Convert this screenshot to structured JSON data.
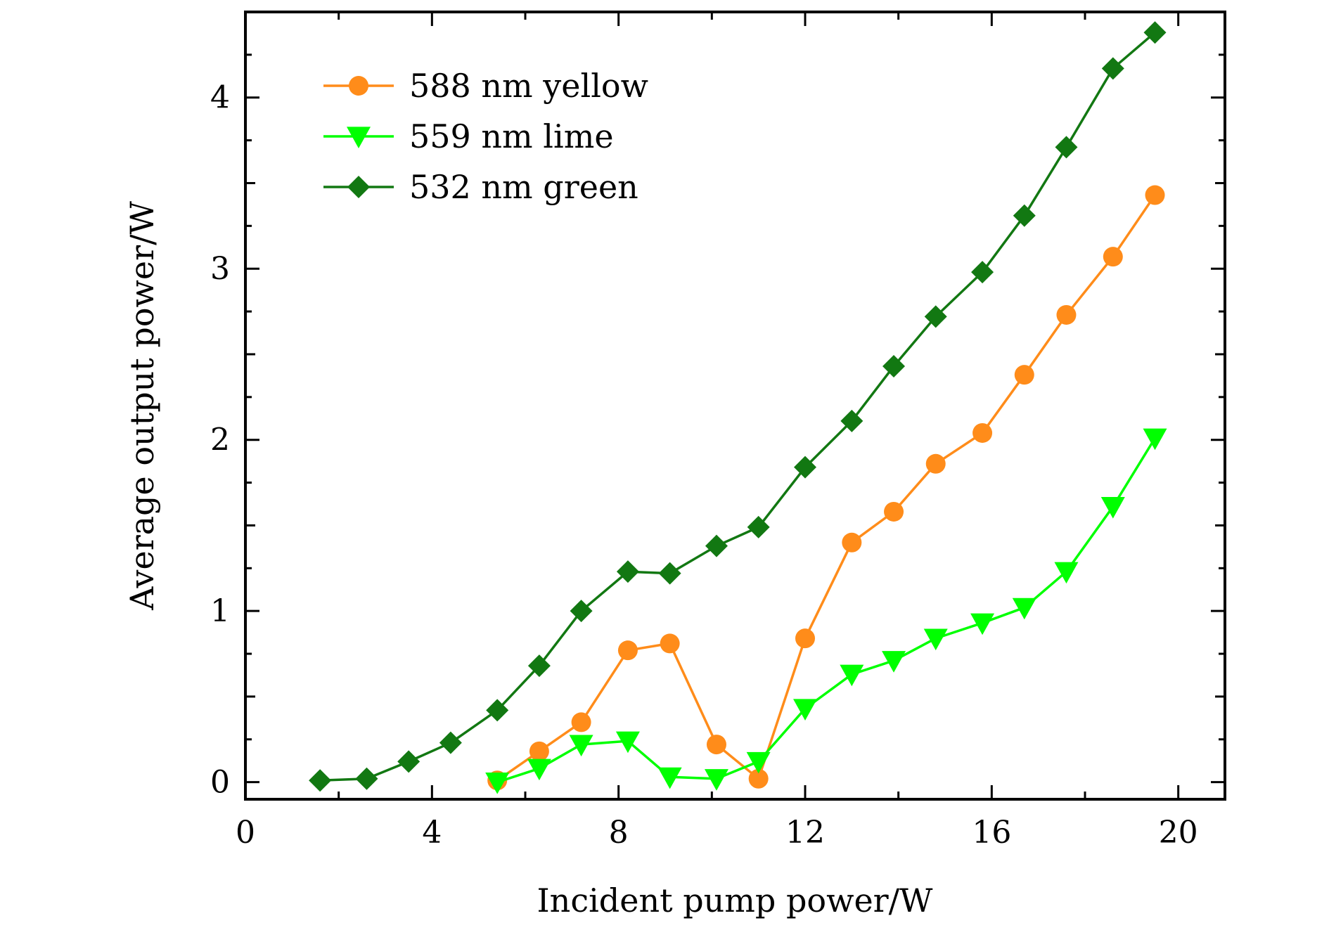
{
  "chart_data": {
    "type": "line",
    "title": "",
    "xlabel": "Incident pump power/W",
    "ylabel": "Average output power/W",
    "xlim": [
      0,
      21
    ],
    "ylim": [
      -0.1,
      4.5
    ],
    "x_ticks": [
      0,
      4,
      8,
      12,
      16,
      20
    ],
    "y_ticks": [
      0,
      1,
      2,
      3,
      4
    ],
    "x_tick_labels": [
      "0",
      "4",
      "8",
      "12",
      "16",
      "20"
    ],
    "y_tick_labels": [
      "0",
      "1",
      "2",
      "3",
      "4"
    ],
    "grid": false,
    "legend_position": "top-left",
    "series": [
      {
        "name": "588 nm yellow",
        "color": "#ff8c1a",
        "marker": "circle",
        "x": [
          5.4,
          6.3,
          7.2,
          8.2,
          9.1,
          10.1,
          11.0,
          12.0,
          13.0,
          13.9,
          14.8,
          15.8,
          16.7,
          17.6,
          18.6,
          19.5
        ],
        "y": [
          0.01,
          0.18,
          0.35,
          0.77,
          0.81,
          0.22,
          0.02,
          0.84,
          1.4,
          1.58,
          1.86,
          2.04,
          2.38,
          2.73,
          3.07,
          3.43
        ]
      },
      {
        "name": "559 nm lime",
        "color": "#00ff00",
        "marker": "triangle-down",
        "x": [
          5.4,
          6.3,
          7.2,
          8.2,
          9.1,
          10.1,
          11.0,
          12.0,
          13.0,
          13.9,
          14.8,
          15.8,
          16.7,
          17.6,
          18.6,
          19.5
        ],
        "y": [
          0.0,
          0.08,
          0.22,
          0.24,
          0.03,
          0.02,
          0.12,
          0.43,
          0.63,
          0.71,
          0.84,
          0.93,
          1.02,
          1.23,
          1.61,
          2.01
        ]
      },
      {
        "name": "532 nm green",
        "color": "#127812",
        "marker": "diamond",
        "x": [
          1.6,
          2.6,
          3.5,
          4.4,
          5.4,
          6.3,
          7.2,
          8.2,
          9.1,
          10.1,
          11.0,
          12.0,
          13.0,
          13.9,
          14.8,
          15.8,
          16.7,
          17.6,
          18.6,
          19.5
        ],
        "y": [
          0.01,
          0.02,
          0.12,
          0.23,
          0.42,
          0.68,
          1.0,
          1.23,
          1.22,
          1.38,
          1.49,
          1.84,
          2.11,
          2.43,
          2.72,
          2.98,
          3.31,
          3.71,
          4.17,
          4.38
        ]
      }
    ]
  }
}
